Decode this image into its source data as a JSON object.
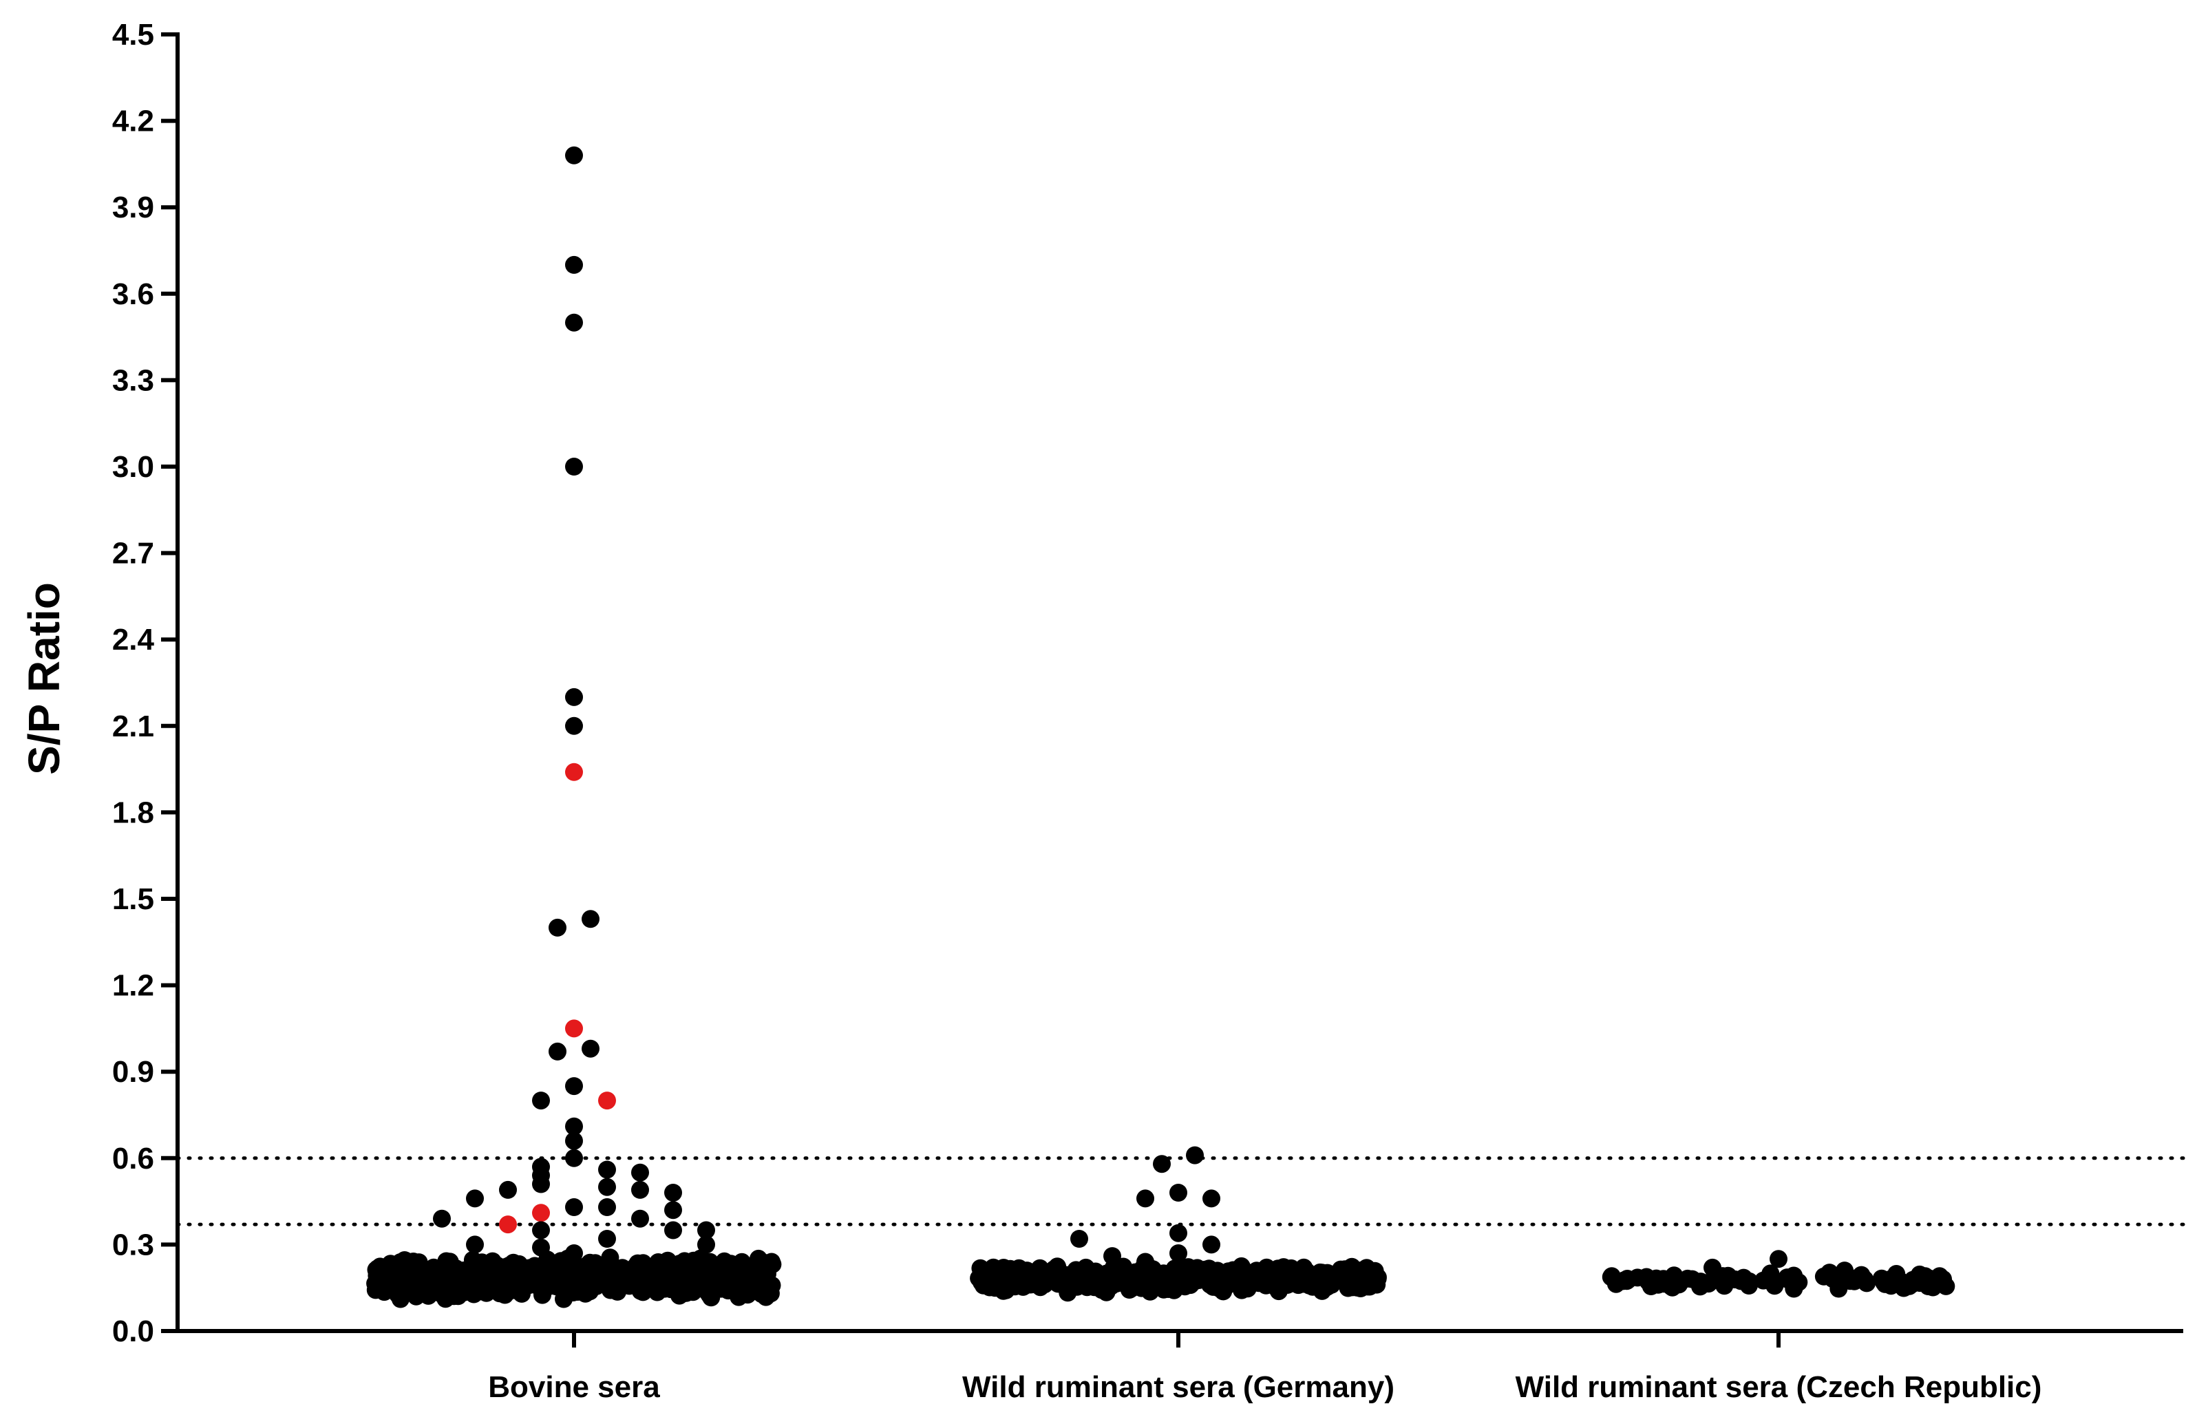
{
  "chart_data": {
    "type": "scatter",
    "subtype": "beeswarm",
    "title": "",
    "xlabel": "",
    "ylabel": "S/P Ratio",
    "ylim": [
      0,
      4.5
    ],
    "yticks": [
      0.0,
      0.3,
      0.6,
      0.9,
      1.2,
      1.5,
      1.8,
      2.1,
      2.4,
      2.7,
      3.0,
      3.3,
      3.6,
      3.9,
      4.2,
      4.5
    ],
    "ytick_labels": [
      "0.0",
      "0.3",
      "0.6",
      "0.9",
      "1.2",
      "1.5",
      "1.8",
      "2.1",
      "2.4",
      "2.7",
      "3.0",
      "3.3",
      "3.6",
      "3.9",
      "4.2",
      "4.5"
    ],
    "categories": [
      "Bovine sera",
      "Wild ruminant sera (Germany)",
      "Wild ruminant sera (Czech Republic)"
    ],
    "reference_lines": [
      {
        "value": 0.6,
        "style": "dotted"
      },
      {
        "value": 0.37,
        "style": "dotted"
      }
    ],
    "colors": {
      "default": "#000000",
      "highlight": "#e41a1c"
    },
    "groups": [
      {
        "category": "Bovine sera",
        "outliers": [
          {
            "offset": 0.0,
            "y": 4.08
          },
          {
            "offset": 0.0,
            "y": 3.7
          },
          {
            "offset": 0.0,
            "y": 3.5
          },
          {
            "offset": 0.0,
            "y": 3.0
          },
          {
            "offset": 0.0,
            "y": 2.2
          },
          {
            "offset": 0.0,
            "y": 2.1
          },
          {
            "offset": 0.0,
            "y": 1.94,
            "highlight": true
          },
          {
            "offset": 0.0,
            "y": 1.43,
            "dx": 1
          },
          {
            "offset": -1,
            "y": 1.4
          },
          {
            "offset": 0.0,
            "y": 1.05,
            "highlight": true
          },
          {
            "offset": -1,
            "y": 0.97
          },
          {
            "offset": 1,
            "y": 0.98
          },
          {
            "offset": -2,
            "y": 0.8
          },
          {
            "offset": 0.0,
            "y": 0.85
          },
          {
            "offset": 2,
            "y": 0.8,
            "highlight": true
          },
          {
            "offset": 0.0,
            "y": 0.71
          },
          {
            "offset": 0.0,
            "y": 0.66
          },
          {
            "offset": 0.0,
            "y": 0.6
          },
          {
            "offset": -4,
            "y": 0.37,
            "highlight": true
          },
          {
            "offset": -4,
            "y": 0.49
          },
          {
            "offset": -2,
            "y": 0.41,
            "highlight": true
          },
          {
            "offset": -2,
            "y": 0.54
          },
          {
            "offset": -6,
            "y": 0.46
          },
          {
            "offset": -8,
            "y": 0.39
          },
          {
            "offset": -2,
            "y": 0.35
          },
          {
            "offset": 0.0,
            "y": 0.43
          },
          {
            "offset": -2,
            "y": 0.57
          },
          {
            "offset": -2,
            "y": 0.51
          },
          {
            "offset": 2,
            "y": 0.56
          },
          {
            "offset": 2,
            "y": 0.5
          },
          {
            "offset": 2,
            "y": 0.43
          },
          {
            "offset": 4,
            "y": 0.55
          },
          {
            "offset": 4,
            "y": 0.49
          },
          {
            "offset": 4,
            "y": 0.39
          },
          {
            "offset": 6,
            "y": 0.48
          },
          {
            "offset": 6,
            "y": 0.42
          },
          {
            "offset": 6,
            "y": 0.35
          },
          {
            "offset": 8,
            "y": 0.35
          },
          {
            "offset": 8,
            "y": 0.3
          },
          {
            "offset": 2,
            "y": 0.32
          },
          {
            "offset": -6,
            "y": 0.3
          },
          {
            "offset": -2,
            "y": 0.29
          },
          {
            "offset": 0.0,
            "y": 0.27
          }
        ],
        "dense_band": {
          "count": 560,
          "y_min": 0.11,
          "y_max": 0.26,
          "spread": 1.0
        }
      },
      {
        "category": "Wild ruminant sera (Germany)",
        "outliers": [
          {
            "offset": -1,
            "y": 0.58
          },
          {
            "offset": 1,
            "y": 0.61
          },
          {
            "offset": -2,
            "y": 0.46
          },
          {
            "offset": 0.0,
            "y": 0.48
          },
          {
            "offset": 2,
            "y": 0.46
          },
          {
            "offset": 0.0,
            "y": 0.34
          },
          {
            "offset": -6,
            "y": 0.32
          },
          {
            "offset": 2,
            "y": 0.3
          },
          {
            "offset": 0.0,
            "y": 0.27
          },
          {
            "offset": -4,
            "y": 0.26
          },
          {
            "offset": -2,
            "y": 0.24
          }
        ],
        "dense_band": {
          "count": 420,
          "y_min": 0.13,
          "y_max": 0.23,
          "spread": 1.0
        }
      },
      {
        "category": "Wild ruminant sera (Czech Republic)",
        "outliers": [
          {
            "offset": 0.0,
            "y": 0.25
          },
          {
            "offset": -4,
            "y": 0.22
          },
          {
            "offset": 4,
            "y": 0.21
          }
        ],
        "dense_band": {
          "count": 95,
          "y_min": 0.14,
          "y_max": 0.21,
          "spread": 0.86
        }
      }
    ]
  }
}
